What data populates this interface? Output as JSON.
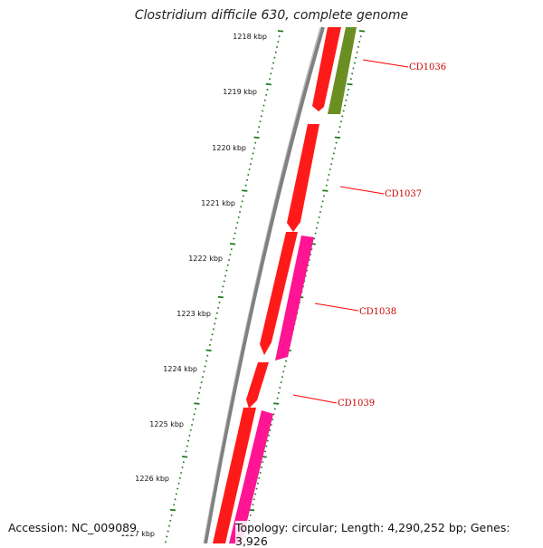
{
  "title": "Clostridium difficile 630, complete genome",
  "footer": {
    "accession": "Accession: NC_009089",
    "summary": "Topology: circular; Length: 4,290,252 bp; Genes: 3,926"
  },
  "colors": {
    "backbone": "#808080",
    "ticks": "#1a7a1a",
    "cds_forward": "#ff1a1a",
    "cds_reverse_olive": "#6b8e23",
    "cds_reverse_pink": "#ff1493",
    "label": "#cc0000"
  },
  "scale": {
    "unit": "kbp",
    "labels": [
      "1218 kbp",
      "1219 kbp",
      "1220 kbp",
      "1221 kbp",
      "1222 kbp",
      "1223 kbp",
      "1224 kbp",
      "1225 kbp",
      "1226 kbp",
      "1227 kbp"
    ]
  },
  "genes": [
    {
      "label": "CD1036"
    },
    {
      "label": "CD1037"
    },
    {
      "label": "CD1038"
    },
    {
      "label": "CD1039"
    }
  ]
}
